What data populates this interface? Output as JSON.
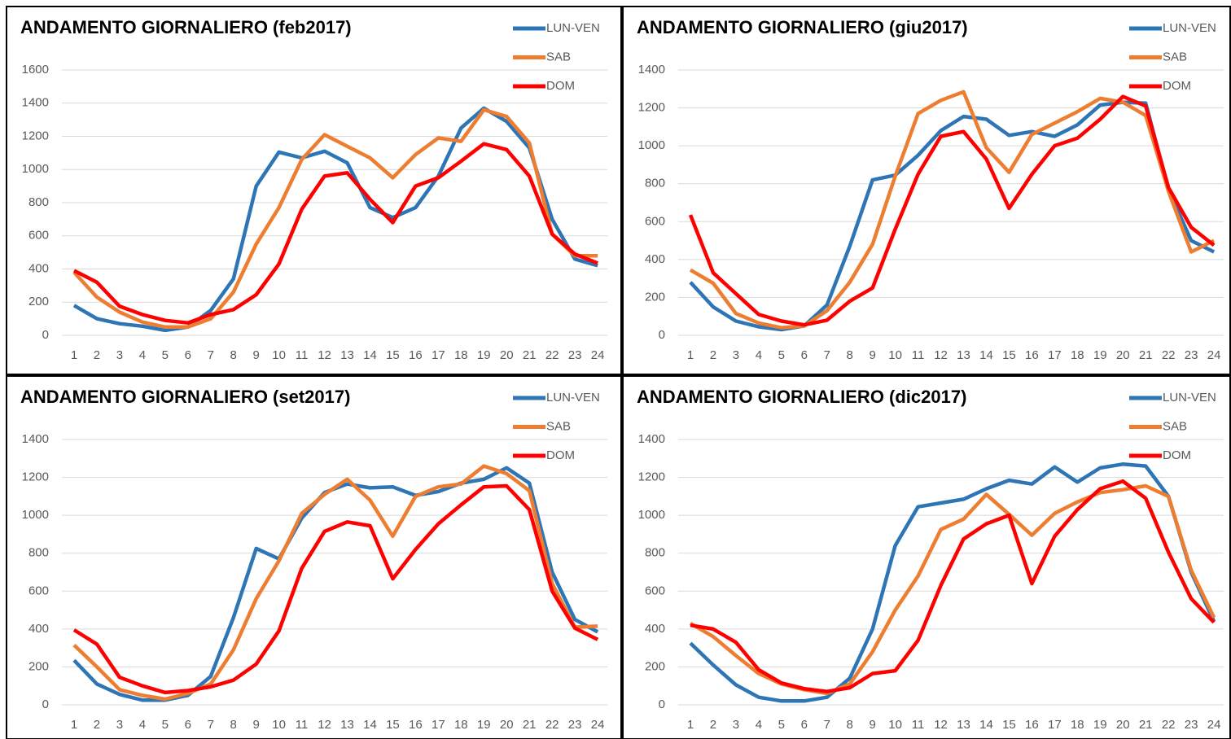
{
  "chart_data": [
    {
      "type": "line",
      "title": "ANDAMENTO GIORNALIERO (feb2017)",
      "categories": [
        "1",
        "2",
        "3",
        "4",
        "5",
        "6",
        "7",
        "8",
        "9",
        "10",
        "11",
        "12",
        "13",
        "14",
        "15",
        "16",
        "17",
        "18",
        "19",
        "20",
        "21",
        "22",
        "23",
        "24"
      ],
      "ylim": [
        0,
        1600
      ],
      "yticks": [
        0,
        200,
        400,
        600,
        800,
        1000,
        1200,
        1400,
        1600
      ],
      "grid": true,
      "series": [
        {
          "name": "LUN-VEN",
          "color": "#2e75b6",
          "values": [
            180,
            100,
            70,
            55,
            30,
            50,
            150,
            340,
            900,
            1105,
            1070,
            1110,
            1040,
            770,
            710,
            770,
            960,
            1250,
            1370,
            1290,
            1130,
            700,
            460,
            420
          ]
        },
        {
          "name": "SAB",
          "color": "#ed7d31",
          "values": [
            380,
            230,
            140,
            80,
            50,
            50,
            100,
            260,
            550,
            770,
            1060,
            1210,
            1140,
            1070,
            950,
            1090,
            1190,
            1170,
            1360,
            1320,
            1160,
            610,
            480,
            480
          ]
        },
        {
          "name": "DOM",
          "color": "#ff0000",
          "values": [
            390,
            320,
            175,
            125,
            90,
            75,
            125,
            155,
            245,
            430,
            760,
            960,
            980,
            820,
            680,
            900,
            950,
            1050,
            1155,
            1120,
            960,
            610,
            490,
            435
          ]
        }
      ]
    },
    {
      "type": "line",
      "title": "ANDAMENTO GIORNALIERO (giu2017)",
      "categories": [
        "1",
        "2",
        "3",
        "4",
        "5",
        "6",
        "7",
        "8",
        "9",
        "10",
        "11",
        "12",
        "13",
        "14",
        "15",
        "16",
        "17",
        "18",
        "19",
        "20",
        "21",
        "22",
        "23",
        "24"
      ],
      "ylim": [
        0,
        1400
      ],
      "yticks": [
        0,
        200,
        400,
        600,
        800,
        1000,
        1200,
        1400
      ],
      "grid": true,
      "series": [
        {
          "name": "LUN-VEN",
          "color": "#2e75b6",
          "values": [
            280,
            150,
            75,
            45,
            30,
            50,
            160,
            470,
            820,
            845,
            950,
            1080,
            1155,
            1140,
            1055,
            1075,
            1050,
            1110,
            1215,
            1230,
            1225,
            770,
            500,
            440
          ]
        },
        {
          "name": "SAB",
          "color": "#ed7d31",
          "values": [
            345,
            275,
            115,
            65,
            40,
            50,
            130,
            280,
            480,
            840,
            1170,
            1240,
            1285,
            990,
            860,
            1060,
            1120,
            1180,
            1250,
            1230,
            1160,
            760,
            440,
            500
          ]
        },
        {
          "name": "DOM",
          "color": "#ff0000",
          "values": [
            635,
            330,
            220,
            110,
            75,
            55,
            80,
            180,
            250,
            560,
            850,
            1050,
            1075,
            930,
            670,
            850,
            1000,
            1040,
            1140,
            1260,
            1210,
            780,
            570,
            475
          ]
        }
      ]
    },
    {
      "type": "line",
      "title": "ANDAMENTO GIORNALIERO (set2017)",
      "categories": [
        "1",
        "2",
        "3",
        "4",
        "5",
        "6",
        "7",
        "8",
        "9",
        "10",
        "11",
        "12",
        "13",
        "14",
        "15",
        "16",
        "17",
        "18",
        "19",
        "20",
        "21",
        "22",
        "23",
        "24"
      ],
      "ylim": [
        0,
        1400
      ],
      "yticks": [
        0,
        200,
        400,
        600,
        800,
        1000,
        1200,
        1400
      ],
      "grid": true,
      "series": [
        {
          "name": "LUN-VEN",
          "color": "#2e75b6",
          "values": [
            235,
            110,
            55,
            25,
            25,
            50,
            150,
            460,
            825,
            770,
            985,
            1120,
            1165,
            1145,
            1150,
            1105,
            1125,
            1170,
            1190,
            1250,
            1170,
            700,
            450,
            385
          ]
        },
        {
          "name": "SAB",
          "color": "#ed7d31",
          "values": [
            315,
            200,
            80,
            50,
            30,
            60,
            110,
            290,
            560,
            760,
            1010,
            1110,
            1190,
            1080,
            890,
            1100,
            1150,
            1165,
            1260,
            1220,
            1130,
            640,
            410,
            415
          ]
        },
        {
          "name": "DOM",
          "color": "#ff0000",
          "values": [
            395,
            320,
            145,
            100,
            65,
            75,
            95,
            130,
            215,
            390,
            720,
            915,
            965,
            945,
            665,
            820,
            955,
            1055,
            1150,
            1155,
            1030,
            600,
            405,
            345
          ]
        }
      ]
    },
    {
      "type": "line",
      "title": "ANDAMENTO GIORNALIERO (dic2017)",
      "categories": [
        "1",
        "2",
        "3",
        "4",
        "5",
        "6",
        "7",
        "8",
        "9",
        "10",
        "11",
        "12",
        "13",
        "14",
        "15",
        "16",
        "17",
        "18",
        "19",
        "20",
        "21",
        "22",
        "23",
        "24"
      ],
      "ylim": [
        0,
        1400
      ],
      "yticks": [
        0,
        200,
        400,
        600,
        800,
        1000,
        1200,
        1400
      ],
      "grid": true,
      "series": [
        {
          "name": "LUN-VEN",
          "color": "#2e75b6",
          "values": [
            325,
            210,
            105,
            40,
            20,
            20,
            40,
            140,
            400,
            840,
            1045,
            1065,
            1085,
            1140,
            1185,
            1165,
            1255,
            1175,
            1250,
            1270,
            1260,
            1100,
            700,
            440
          ]
        },
        {
          "name": "SAB",
          "color": "#ed7d31",
          "values": [
            430,
            360,
            260,
            165,
            110,
            80,
            60,
            110,
            280,
            500,
            680,
            925,
            980,
            1110,
            1005,
            895,
            1010,
            1070,
            1120,
            1135,
            1155,
            1100,
            710,
            460
          ]
        },
        {
          "name": "DOM",
          "color": "#ff0000",
          "values": [
            420,
            400,
            330,
            185,
            115,
            85,
            70,
            90,
            165,
            180,
            340,
            630,
            875,
            955,
            1000,
            640,
            890,
            1030,
            1140,
            1180,
            1090,
            805,
            560,
            435
          ]
        }
      ]
    }
  ]
}
